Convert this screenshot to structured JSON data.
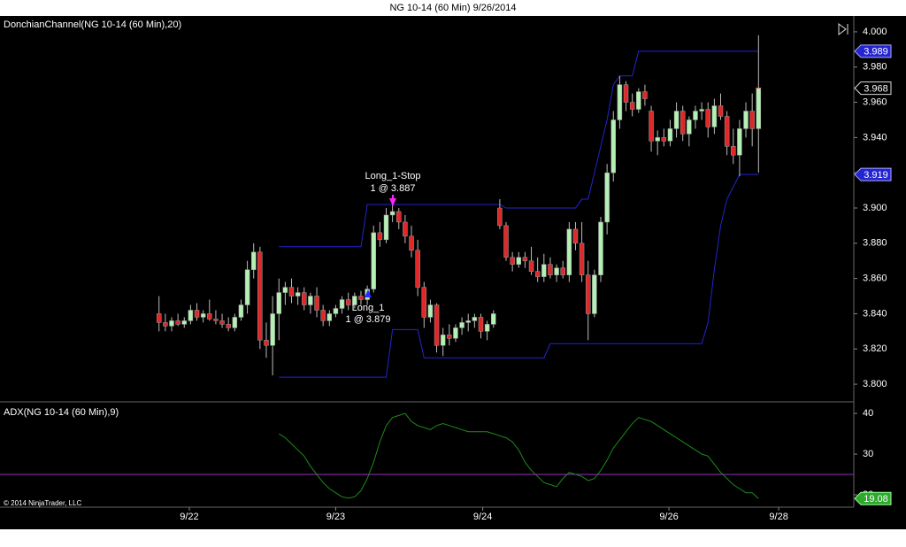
{
  "title": "NG 10-14 (60 Min)  9/26/2014",
  "footer": "© 2014 NinjaTrader, LLC",
  "chart_data": [
    {
      "type": "candlestick",
      "label": "DonchianChannel(NG 10-14 (60 Min),20)",
      "x": [
        0,
        1,
        2,
        3,
        4,
        5,
        6,
        7,
        8,
        9,
        10,
        11,
        12,
        13,
        14,
        15,
        16,
        17,
        18,
        19,
        20,
        21,
        22,
        23,
        24,
        25,
        26,
        27,
        28,
        29,
        30,
        31,
        32,
        33,
        34,
        35,
        36,
        37,
        38,
        39,
        40,
        41,
        42,
        43,
        44,
        45,
        46,
        47,
        48,
        49,
        50,
        51,
        52,
        53,
        54,
        55,
        56,
        57,
        58,
        59,
        60,
        61,
        62,
        63,
        64,
        65,
        66,
        67,
        68,
        69,
        70,
        71,
        72,
        73,
        74,
        75,
        76,
        77,
        78,
        79,
        80,
        81,
        82,
        83,
        84,
        85,
        86,
        87,
        88,
        89,
        90,
        91,
        92,
        93,
        94,
        95
      ],
      "open": [
        3.84,
        3.835,
        3.833,
        3.836,
        3.834,
        3.836,
        3.842,
        3.838,
        3.84,
        3.837,
        3.836,
        3.834,
        3.832,
        3.838,
        3.845,
        3.865,
        3.875,
        3.825,
        3.822,
        3.84,
        3.852,
        3.855,
        3.85,
        3.852,
        3.845,
        3.85,
        3.842,
        3.836,
        3.84,
        3.843,
        3.848,
        3.845,
        3.85,
        3.848,
        3.854,
        3.886,
        3.882,
        3.896,
        3.898,
        3.892,
        3.884,
        3.876,
        3.855,
        3.838,
        3.845,
        3.822,
        3.828,
        3.826,
        3.832,
        3.835,
        3.836,
        3.838,
        3.83,
        3.834,
        3.9,
        3.89,
        3.872,
        3.868,
        3.872,
        3.87,
        3.864,
        3.861,
        3.868,
        3.862,
        3.866,
        3.862,
        3.888,
        3.88,
        3.862,
        3.84,
        3.862,
        3.892,
        3.92,
        3.95,
        3.97,
        3.96,
        3.956,
        3.966,
        3.955,
        3.938,
        3.94,
        3.938,
        3.945,
        3.955,
        3.942,
        3.95,
        3.955,
        3.956,
        3.946,
        3.958,
        3.952,
        3.935,
        3.93,
        3.945,
        3.955,
        3.945
      ],
      "high": [
        3.85,
        3.84,
        3.838,
        3.84,
        3.838,
        3.845,
        3.846,
        3.842,
        3.848,
        3.842,
        3.84,
        3.838,
        3.84,
        3.848,
        3.87,
        3.88,
        3.878,
        3.835,
        3.85,
        3.86,
        3.858,
        3.86,
        3.855,
        3.855,
        3.852,
        3.855,
        3.845,
        3.842,
        3.845,
        3.85,
        3.852,
        3.852,
        3.853,
        3.856,
        3.89,
        3.892,
        3.9,
        3.902,
        3.9,
        3.896,
        3.89,
        3.882,
        3.858,
        3.848,
        3.846,
        3.832,
        3.834,
        3.834,
        3.838,
        3.84,
        3.84,
        3.84,
        3.836,
        3.842,
        3.905,
        3.892,
        3.875,
        3.875,
        3.875,
        3.878,
        3.872,
        3.874,
        3.872,
        3.868,
        3.87,
        3.892,
        3.892,
        3.892,
        3.87,
        3.865,
        3.895,
        3.925,
        3.955,
        3.975,
        3.972,
        3.965,
        3.968,
        3.97,
        3.958,
        3.944,
        3.945,
        3.95,
        3.96,
        3.958,
        3.952,
        3.958,
        3.96,
        3.96,
        3.962,
        3.965,
        3.955,
        3.945,
        3.95,
        3.96,
        3.965,
        3.998
      ],
      "low": [
        3.83,
        3.83,
        3.83,
        3.833,
        3.832,
        3.834,
        3.836,
        3.835,
        3.836,
        3.834,
        3.832,
        3.83,
        3.83,
        3.836,
        3.84,
        3.86,
        3.82,
        3.815,
        3.805,
        3.825,
        3.845,
        3.846,
        3.845,
        3.842,
        3.84,
        3.838,
        3.833,
        3.833,
        3.838,
        3.84,
        3.842,
        3.843,
        3.845,
        3.845,
        3.852,
        3.878,
        3.88,
        3.892,
        3.888,
        3.88,
        3.872,
        3.85,
        3.832,
        3.835,
        3.818,
        3.816,
        3.822,
        3.824,
        3.828,
        3.83,
        3.832,
        3.826,
        3.825,
        3.832,
        3.888,
        3.87,
        3.864,
        3.866,
        3.866,
        3.862,
        3.858,
        3.858,
        3.86,
        3.858,
        3.86,
        3.858,
        3.876,
        3.858,
        3.825,
        3.838,
        3.858,
        3.885,
        3.915,
        3.945,
        3.955,
        3.952,
        3.954,
        3.958,
        3.932,
        3.93,
        3.935,
        3.935,
        3.94,
        3.938,
        3.935,
        3.945,
        3.95,
        3.94,
        3.942,
        3.95,
        3.93,
        3.925,
        3.918,
        3.94,
        3.935,
        3.92
      ],
      "close": [
        3.835,
        3.833,
        3.836,
        3.834,
        3.836,
        3.842,
        3.838,
        3.84,
        3.837,
        3.836,
        3.834,
        3.832,
        3.838,
        3.845,
        3.865,
        3.875,
        3.825,
        3.822,
        3.84,
        3.852,
        3.855,
        3.85,
        3.852,
        3.845,
        3.85,
        3.842,
        3.836,
        3.84,
        3.843,
        3.848,
        3.845,
        3.85,
        3.848,
        3.854,
        3.886,
        3.882,
        3.896,
        3.898,
        3.892,
        3.884,
        3.876,
        3.855,
        3.838,
        3.845,
        3.822,
        3.828,
        3.826,
        3.832,
        3.835,
        3.836,
        3.838,
        3.83,
        3.834,
        3.84,
        3.89,
        3.872,
        3.868,
        3.872,
        3.87,
        3.864,
        3.861,
        3.868,
        3.862,
        3.866,
        3.862,
        3.888,
        3.88,
        3.862,
        3.84,
        3.862,
        3.892,
        3.92,
        3.95,
        3.97,
        3.96,
        3.956,
        3.966,
        3.962,
        3.938,
        3.94,
        3.938,
        3.945,
        3.955,
        3.942,
        3.95,
        3.955,
        3.956,
        3.946,
        3.958,
        3.952,
        3.935,
        3.93,
        3.945,
        3.955,
        3.945,
        3.968
      ],
      "up_color": "#b4efb4",
      "down_color": "#e02828",
      "channel": {
        "color": "#2424d0",
        "upper": [
          null,
          null,
          null,
          null,
          null,
          null,
          null,
          null,
          null,
          null,
          null,
          null,
          null,
          null,
          null,
          null,
          null,
          null,
          null,
          3.878,
          3.878,
          3.878,
          3.878,
          3.878,
          3.878,
          3.878,
          3.878,
          3.878,
          3.878,
          3.878,
          3.878,
          3.878,
          3.878,
          3.902,
          3.902,
          3.902,
          3.902,
          3.902,
          3.902,
          3.902,
          3.902,
          3.902,
          3.902,
          3.902,
          3.902,
          3.902,
          3.902,
          3.902,
          3.902,
          3.902,
          3.902,
          3.902,
          3.902,
          3.902,
          3.902,
          3.9,
          3.9,
          3.9,
          3.9,
          3.9,
          3.9,
          3.9,
          3.9,
          3.9,
          3.9,
          3.9,
          3.9,
          3.905,
          3.905,
          3.92,
          3.935,
          3.95,
          3.97,
          3.975,
          3.975,
          3.975,
          3.989,
          3.989,
          3.989,
          3.989,
          3.989,
          3.989,
          3.989,
          3.989,
          3.989,
          3.989,
          3.989,
          3.989,
          3.989,
          3.989,
          3.989,
          3.989,
          3.989,
          3.989,
          3.989,
          3.989
        ],
        "lower": [
          null,
          null,
          null,
          null,
          null,
          null,
          null,
          null,
          null,
          null,
          null,
          null,
          null,
          null,
          null,
          null,
          null,
          null,
          null,
          3.804,
          3.804,
          3.804,
          3.804,
          3.804,
          3.804,
          3.804,
          3.804,
          3.804,
          3.804,
          3.804,
          3.804,
          3.804,
          3.804,
          3.804,
          3.804,
          3.804,
          3.804,
          3.831,
          3.831,
          3.831,
          3.831,
          3.831,
          3.815,
          3.815,
          3.815,
          3.815,
          3.815,
          3.815,
          3.815,
          3.815,
          3.815,
          3.815,
          3.815,
          3.815,
          3.815,
          3.815,
          3.815,
          3.815,
          3.815,
          3.815,
          3.815,
          3.815,
          3.823,
          3.823,
          3.823,
          3.823,
          3.823,
          3.823,
          3.823,
          3.823,
          3.823,
          3.823,
          3.823,
          3.823,
          3.823,
          3.823,
          3.823,
          3.823,
          3.823,
          3.823,
          3.823,
          3.823,
          3.823,
          3.823,
          3.823,
          3.823,
          3.823,
          3.835,
          3.865,
          3.89,
          3.905,
          3.912,
          3.919,
          3.919,
          3.919,
          3.919
        ]
      },
      "annotations": [
        {
          "lines": [
            "Long_1",
            "1 @ 3.879"
          ],
          "color": "#2a2aff"
        },
        {
          "lines": [
            "Long_1-Stop",
            "1 @ 3.887"
          ],
          "color": "#ff22ff"
        }
      ],
      "xlim": [
        -25.2,
        110.1
      ],
      "xticks": [
        {
          "value": 4.8,
          "label": "9/22"
        },
        {
          "value": 28,
          "label": "9/23"
        },
        {
          "value": 51.3,
          "label": "9/24"
        },
        {
          "value": 80.8,
          "label": "9/26"
        },
        {
          "value": 98.2,
          "label": "9/28"
        }
      ],
      "ylim": [
        3.791,
        4.009
      ],
      "yticks": [
        {
          "value": 3.8,
          "label": "3.800"
        },
        {
          "value": 3.82,
          "label": "3.820"
        },
        {
          "value": 3.84,
          "label": "3.840"
        },
        {
          "value": 3.86,
          "label": "3.860"
        },
        {
          "value": 3.88,
          "label": "3.880"
        },
        {
          "value": 3.9,
          "label": "3.900"
        },
        {
          "value": 3.92,
          "label": "3.920"
        },
        {
          "value": 3.94,
          "label": "3.940"
        },
        {
          "value": 3.96,
          "label": "3.960"
        },
        {
          "value": 3.98,
          "label": "3.980"
        },
        {
          "value": 4.0,
          "label": "4.000"
        }
      ]
    },
    {
      "type": "line",
      "label": "ADX(NG 10-14 (60 Min),9)",
      "color": "#1c8c1c",
      "values": [
        null,
        null,
        null,
        null,
        null,
        null,
        null,
        null,
        null,
        null,
        null,
        null,
        null,
        null,
        null,
        null,
        null,
        null,
        null,
        35,
        34,
        32.5,
        31,
        29.5,
        27,
        25,
        23,
        21.5,
        20.5,
        19.5,
        19.2,
        19.5,
        21,
        24,
        28,
        33,
        37,
        39,
        39.5,
        40,
        38,
        37,
        36.5,
        36,
        37,
        37.5,
        37,
        36.5,
        36,
        35.5,
        35.5,
        35.5,
        35.5,
        35,
        34.5,
        34,
        33,
        31,
        28,
        26,
        24.5,
        23,
        22.5,
        22,
        24,
        25.5,
        25,
        24.5,
        23.5,
        24,
        26,
        28.5,
        31.5,
        33.5,
        35.5,
        37.5,
        39,
        38.5,
        38,
        37,
        36,
        35,
        34,
        33,
        32,
        31,
        30,
        29.5,
        27.5,
        25.5,
        24,
        22.5,
        21.5,
        20.5,
        20.5,
        19.08
      ],
      "reference": {
        "value": 25,
        "color": "#9a30c0"
      },
      "ylim": [
        16.96,
        42.4
      ],
      "yticks": [
        20,
        30,
        40
      ],
      "label_color": "#2ea82e"
    }
  ]
}
